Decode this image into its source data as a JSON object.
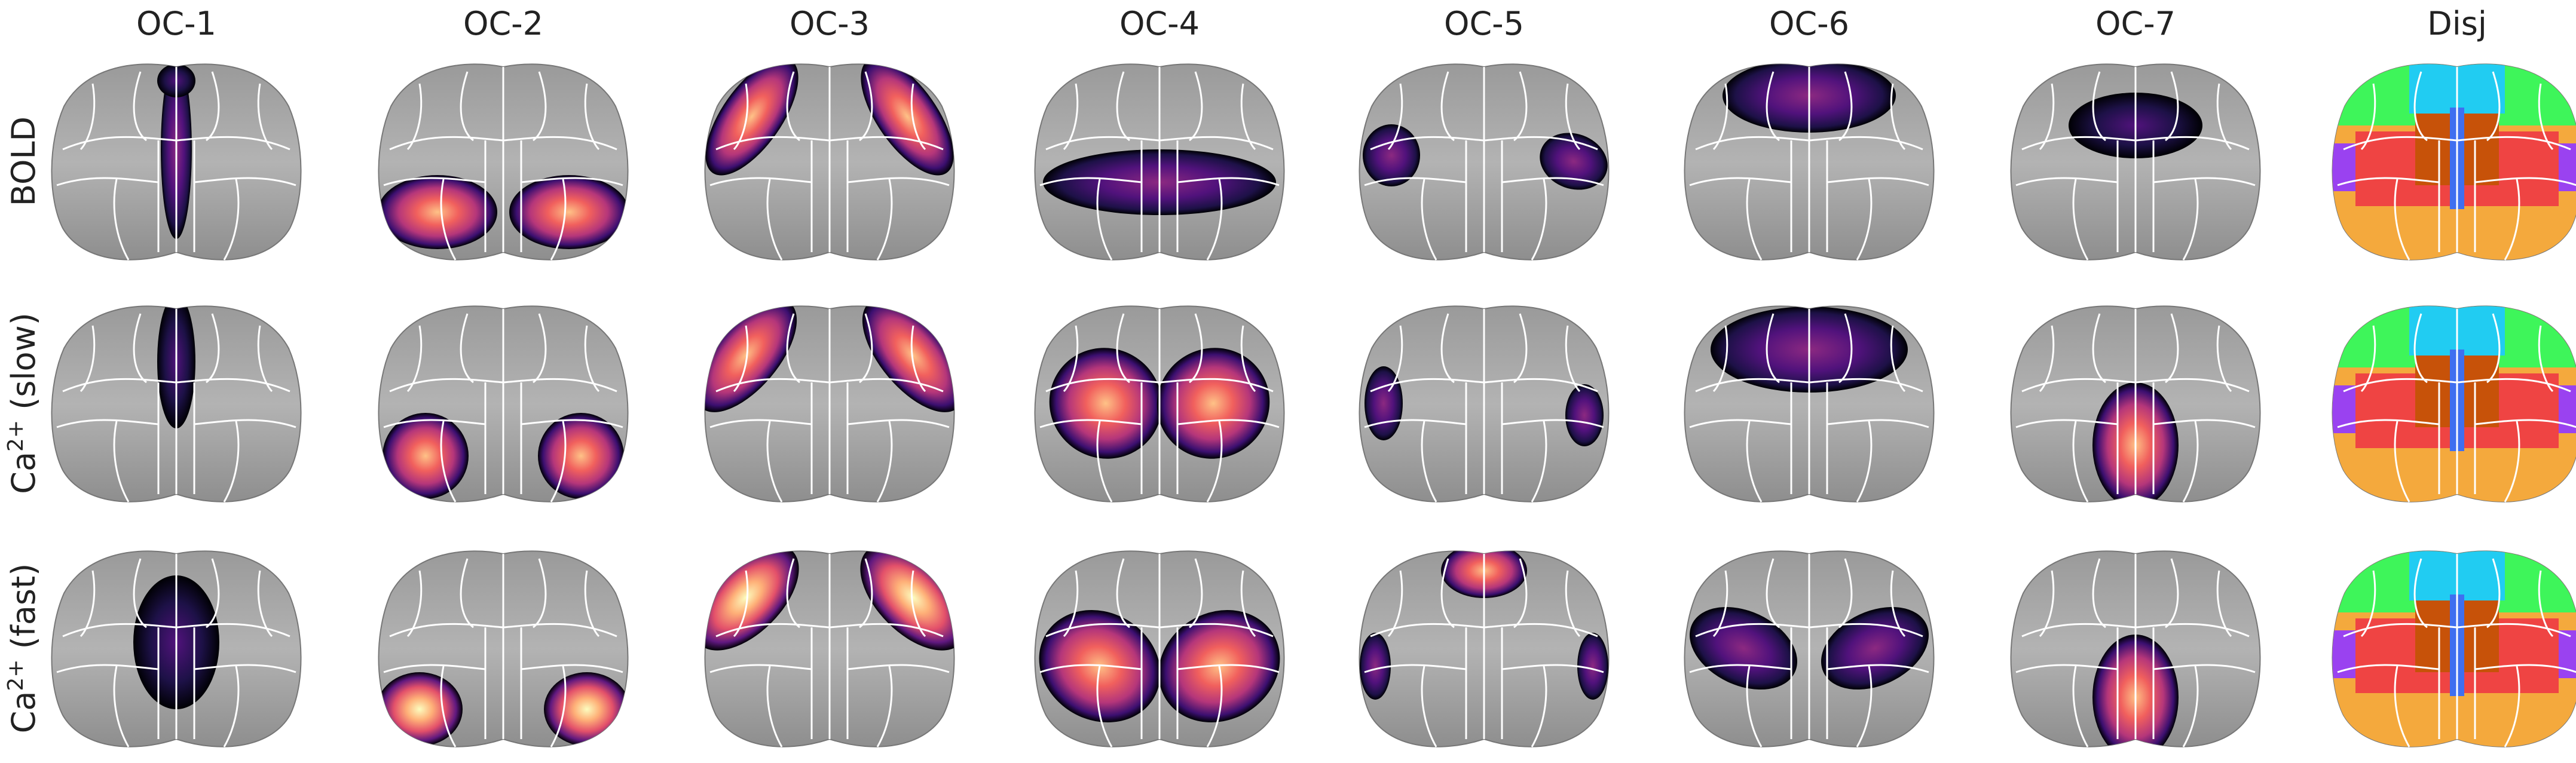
{
  "columns": [
    "OC-1",
    "OC-2",
    "OC-3",
    "OC-4",
    "OC-5",
    "OC-6",
    "OC-7",
    "Disj"
  ],
  "rows": [
    {
      "label": "BOLD"
    },
    {
      "label": "Ca",
      "sup": "2+",
      "suffix": " (slow)"
    },
    {
      "label": "Ca",
      "sup": "2+",
      "suffix": " (fast)"
    }
  ]
}
